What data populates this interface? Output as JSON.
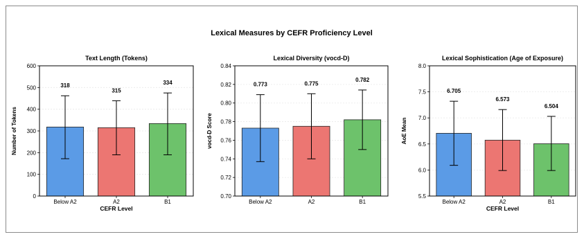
{
  "figure_title": "Lexical Measures by CEFR Proficiency Level",
  "chart_data": [
    {
      "type": "bar",
      "title": "Text Length (Tokens)",
      "xlabel": "CEFR Level",
      "ylabel": "Number of Tokens",
      "categories": [
        "Below A2",
        "A2",
        "B1"
      ],
      "values": [
        318,
        315,
        334
      ],
      "value_labels": [
        "318",
        "315",
        "334"
      ],
      "error_low": [
        172,
        190,
        190
      ],
      "error_high": [
        462,
        439,
        475
      ],
      "ylim": [
        0,
        600
      ],
      "yticks": [
        0,
        100,
        200,
        300,
        400,
        500,
        600
      ],
      "ytick_labels": [
        "0",
        "100",
        "200",
        "300",
        "400",
        "500",
        "600"
      ],
      "colors": [
        "#5b9be6",
        "#ec7672",
        "#6dc26b"
      ],
      "grid": true
    },
    {
      "type": "bar",
      "title": "Lexical Diversity (vocd-D)",
      "xlabel": "",
      "ylabel": "vocd-D Score",
      "categories": [
        "Below A2",
        "A2",
        "B1"
      ],
      "values": [
        0.773,
        0.775,
        0.782
      ],
      "value_labels": [
        "0.773",
        "0.775",
        "0.782"
      ],
      "error_low": [
        0.737,
        0.74,
        0.75
      ],
      "error_high": [
        0.809,
        0.81,
        0.814
      ],
      "ylim": [
        0.7,
        0.84
      ],
      "yticks": [
        0.7,
        0.72,
        0.74,
        0.76,
        0.78,
        0.8,
        0.82,
        0.84
      ],
      "ytick_labels": [
        "0.70",
        "0.72",
        "0.74",
        "0.76",
        "0.78",
        "0.80",
        "0.82",
        "0.84"
      ],
      "colors": [
        "#5b9be6",
        "#ec7672",
        "#6dc26b"
      ],
      "grid": true
    },
    {
      "type": "bar",
      "title": "Lexical Sophistication (Age of Exposure)",
      "xlabel": "CEFR Level",
      "ylabel": "AoE Mean",
      "categories": [
        "Below A2",
        "A2",
        "B1"
      ],
      "values": [
        6.705,
        6.573,
        6.504
      ],
      "value_labels": [
        "6.705",
        "6.573",
        "6.504"
      ],
      "error_low": [
        6.09,
        5.99,
        5.99
      ],
      "error_high": [
        7.32,
        7.16,
        7.03
      ],
      "ylim": [
        5.5,
        8.0
      ],
      "yticks": [
        5.5,
        6.0,
        6.5,
        7.0,
        7.5,
        8.0
      ],
      "ytick_labels": [
        "5.5",
        "6.0",
        "6.5",
        "7.0",
        "7.5",
        "8.0"
      ],
      "colors": [
        "#5b9be6",
        "#ec7672",
        "#6dc26b"
      ],
      "grid": true
    }
  ]
}
